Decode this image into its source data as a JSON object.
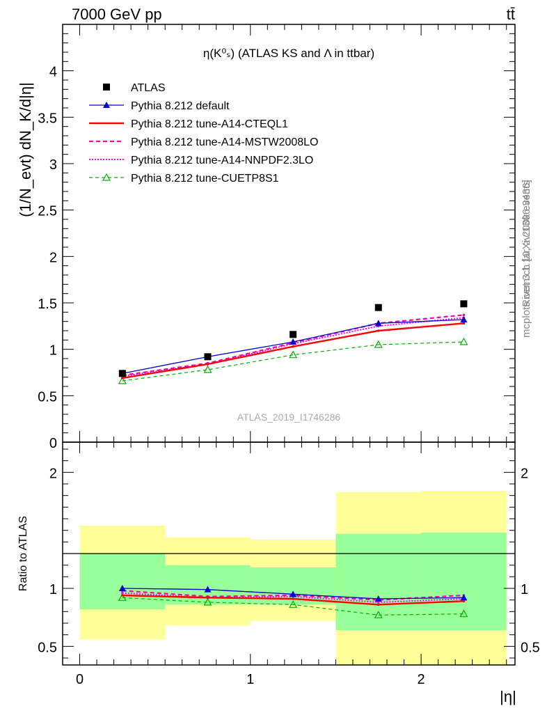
{
  "header": {
    "energy_label": "7000 GeV pp",
    "process_label": "tt̄"
  },
  "side_labels": {
    "rivet": "Rivet 3.1.10, ≥ 200k events",
    "mcplots": "mcplots.cern.ch [arXiv:1306.3436]"
  },
  "colors": {
    "data": "#000000",
    "default": "#0000cc",
    "cteql1": "#ff0000",
    "mstw": "#ff00aa",
    "nnpdf": "#ff00ff",
    "cuetp8s1": "#00b000",
    "band_outer": "#ffff99",
    "band_inner": "#99ff99"
  },
  "chart_data": [
    {
      "type": "line",
      "panel": "main",
      "title": "η(K⁰ₛ) (ATLAS KS and Λ in ttbar)",
      "ylabel": "(1/N_evt) dN_K/d|η|",
      "analysis_label": "ATLAS_2019_I1746286",
      "ylim": [
        0,
        4.5
      ],
      "yticks": [
        "0",
        "0.5",
        "1",
        "1.5",
        "2",
        "2.5",
        "3",
        "3.5",
        "4"
      ],
      "xlim": [
        -0.1,
        2.55
      ],
      "x": [
        0.25,
        0.75,
        1.25,
        1.75,
        2.25
      ],
      "series": [
        {
          "name": "ATLAS",
          "key": "data",
          "marker": "square",
          "values": [
            0.74,
            0.92,
            1.16,
            1.45,
            1.49
          ]
        },
        {
          "name": "Pythia 8.212 default",
          "key": "default",
          "marker": "triangle-filled",
          "values": [
            0.74,
            0.92,
            1.08,
            1.28,
            1.32
          ]
        },
        {
          "name": "Pythia 8.212 tune-A14-CTEQL1",
          "key": "cteql1",
          "marker": "none",
          "values": [
            0.69,
            0.84,
            1.03,
            1.2,
            1.28
          ]
        },
        {
          "name": "Pythia 8.212 tune-A14-MSTW2008LO",
          "key": "mstw",
          "marker": "none",
          "values": [
            0.72,
            0.85,
            1.07,
            1.28,
            1.37
          ]
        },
        {
          "name": "Pythia 8.212 tune-A14-NNPDF2.3LO",
          "key": "nnpdf",
          "marker": "none",
          "values": [
            0.71,
            0.84,
            1.06,
            1.25,
            1.34
          ]
        },
        {
          "name": "Pythia 8.212 tune-CUETP8S1",
          "key": "cuetp8s1",
          "marker": "triangle-open",
          "values": [
            0.66,
            0.78,
            0.94,
            1.05,
            1.08
          ]
        }
      ]
    },
    {
      "type": "line",
      "panel": "ratio",
      "ylabel": "Ratio to ATLAS",
      "xlabel": "|η|",
      "ylim": [
        0.34,
        2.26
      ],
      "yticks": [
        "0.5",
        "1",
        "2"
      ],
      "xticks": [
        "0",
        "1",
        "2"
      ],
      "xlim": [
        -0.1,
        2.55
      ],
      "bands": [
        {
          "x": [
            0,
            0.5
          ],
          "outer": [
            0.56,
            1.54
          ],
          "inner": [
            0.82,
            1.3
          ]
        },
        {
          "x": [
            0.5,
            1.0
          ],
          "outer": [
            0.68,
            1.44
          ],
          "inner": [
            0.86,
            1.2
          ]
        },
        {
          "x": [
            1.0,
            1.5
          ],
          "outer": [
            0.72,
            1.42
          ],
          "inner": [
            0.86,
            1.18
          ]
        },
        {
          "x": [
            1.5,
            2.0
          ],
          "outer": [
            0.34,
            1.83
          ],
          "inner": [
            0.64,
            1.47
          ]
        },
        {
          "x": [
            2.0,
            2.5
          ],
          "outer": [
            0.34,
            1.84
          ],
          "inner": [
            0.64,
            1.48
          ]
        }
      ],
      "x": [
        0.25,
        0.75,
        1.25,
        1.75,
        2.25
      ],
      "series": [
        {
          "key": "default",
          "marker": "triangle-filled",
          "values": [
            1.0,
            0.99,
            0.95,
            0.91,
            0.92
          ]
        },
        {
          "key": "cteql1",
          "marker": "none",
          "values": [
            0.94,
            0.92,
            0.91,
            0.86,
            0.89
          ]
        },
        {
          "key": "mstw",
          "marker": "none",
          "values": [
            0.98,
            0.93,
            0.94,
            0.9,
            0.94
          ]
        },
        {
          "key": "nnpdf",
          "marker": "none",
          "values": [
            0.96,
            0.92,
            0.93,
            0.88,
            0.91
          ]
        },
        {
          "key": "cuetp8s1",
          "marker": "triangle-open",
          "values": [
            0.92,
            0.88,
            0.86,
            0.77,
            0.78
          ]
        }
      ]
    }
  ]
}
